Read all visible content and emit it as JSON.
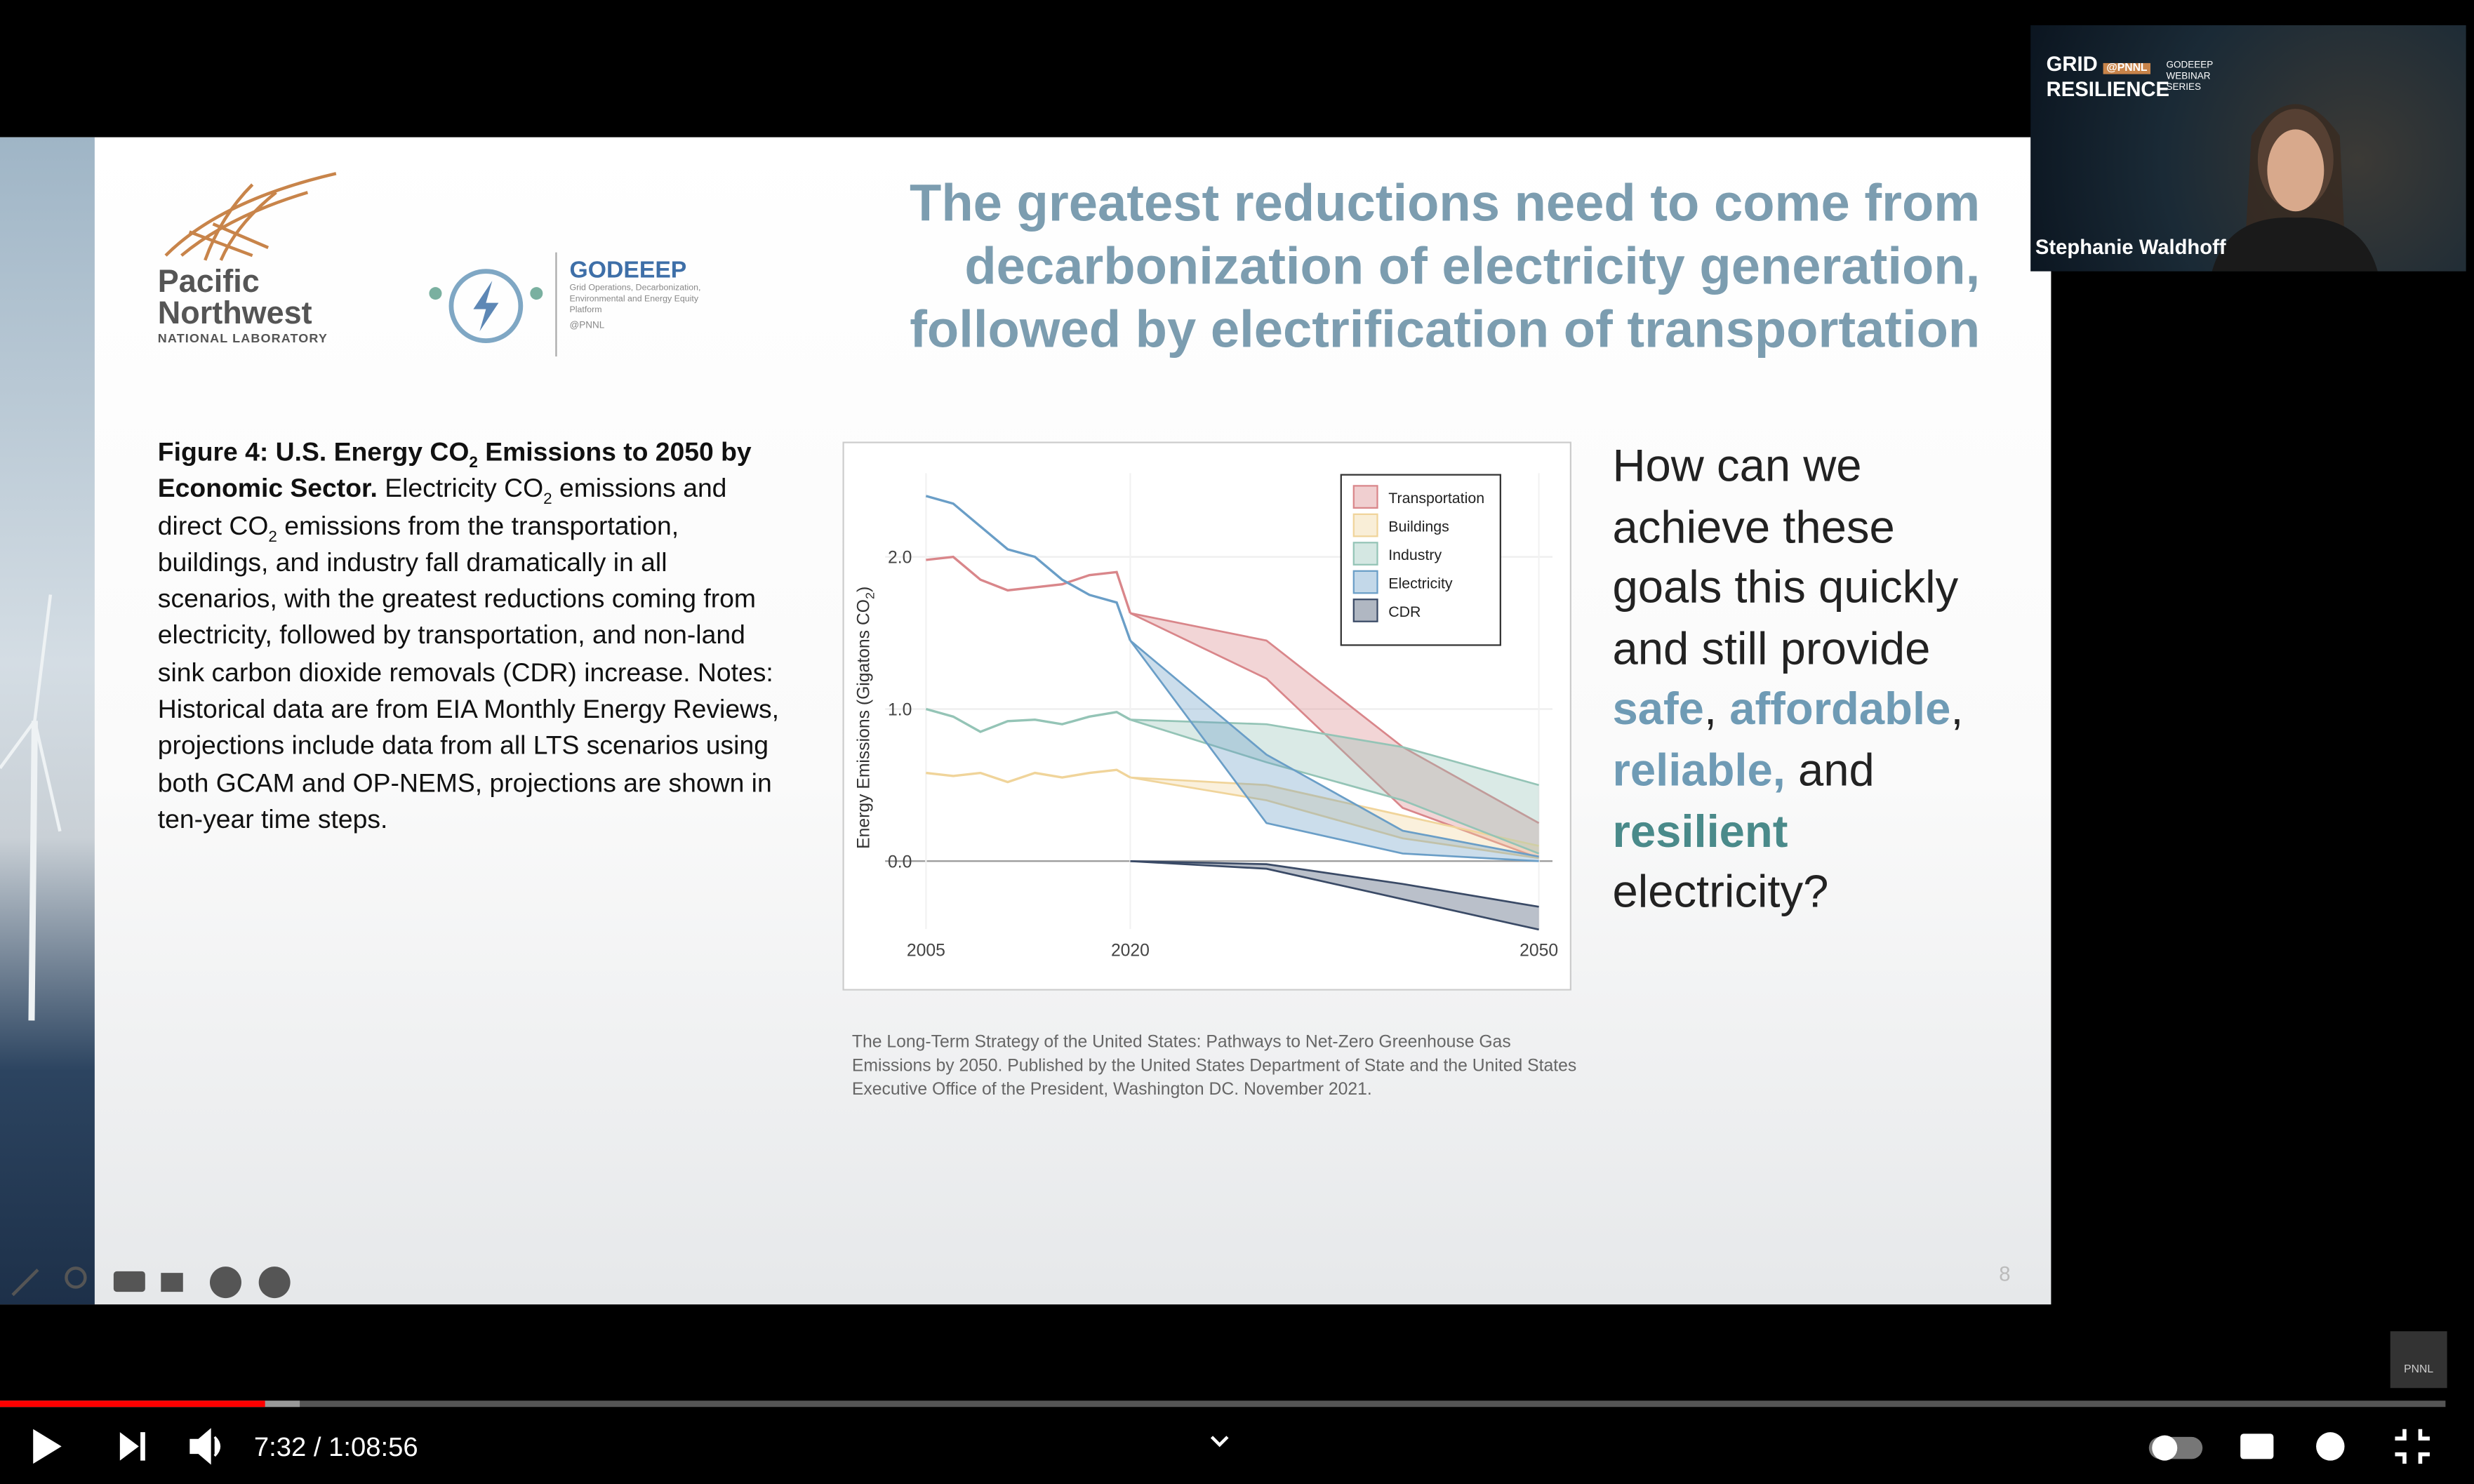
{
  "slide": {
    "pnnl_line1": "Pacific",
    "pnnl_line2": "Northwest",
    "pnnl_sub": "NATIONAL LABORATORY",
    "godeeep": "GODEEEP",
    "godeeep_tagline": "Grid Operations, Decarbonization, Environmental and Energy Equity Platform",
    "godeeep_handle": "@PNNL",
    "title": [
      "The greatest reductions need to come from",
      "decarbonization of electricity generation,",
      "followed by electrification of transportation"
    ],
    "caption": [
      "Figure 4: U.S. Energy CO",
      "2",
      " Emissions to 2050 by Economic Sector.",
      " Electricity CO",
      "2",
      " emissions and direct CO",
      "2",
      " emissions from the transportation, buildings, and industry fall dramatically in all scenarios, with the greatest reductions coming from electricity, followed by transportation, and non-land sink carbon dioxide removals (CDR) increase. Notes: Historical data are from EIA Monthly Energy Reviews, projections include data from all LTS scenarios using both GCAM and OP-NEMS, projections are shown in ten-year time steps."
    ],
    "question": [
      "How can we achieve these goals this quickly and still provide ",
      "safe",
      ",",
      "affordable",
      ",",
      "reliable,",
      " and",
      "resilient",
      "electricity?"
    ],
    "source": "The Long-Term Strategy of the United States: Pathways to Net-Zero Greenhouse Gas Emissions by 2050. Published by the United States Department of State and the United States Executive Office of the President, Washington DC. November 2021.",
    "page_number": "8",
    "figure": {
      "y_label": [
        "Energy Emissions (Gigatons CO",
        "2",
        ")"
      ],
      "xlim": [
        2002,
        2051
      ],
      "ylim": [
        -0.55,
        2.55
      ],
      "xticks": [
        2005,
        2020,
        2050
      ],
      "yticks": [
        {
          "value": 0,
          "label": "0.0"
        },
        {
          "value": 1,
          "label": "1.0"
        },
        {
          "value": 2,
          "label": "2.0"
        }
      ],
      "x_hist": [
        2005,
        2007,
        2009,
        2011,
        2013,
        2015,
        2017,
        2019,
        2020
      ],
      "x_proj": [
        2020,
        2030,
        2040,
        2050
      ],
      "series": [
        {
          "name": "Transportation",
          "color": "#d9868a",
          "hist": [
            1.98,
            2.0,
            1.85,
            1.78,
            1.8,
            1.82,
            1.88,
            1.9,
            1.63
          ],
          "low": [
            1.63,
            1.2,
            0.35,
            0.02
          ],
          "high": [
            1.63,
            1.45,
            0.75,
            0.25
          ]
        },
        {
          "name": "Buildings",
          "color": "#f0d49a",
          "hist": [
            0.58,
            0.56,
            0.58,
            0.52,
            0.58,
            0.55,
            0.58,
            0.6,
            0.55
          ],
          "low": [
            0.55,
            0.4,
            0.15,
            0.02
          ],
          "high": [
            0.55,
            0.5,
            0.3,
            0.1
          ]
        },
        {
          "name": "Industry",
          "color": "#94c4b6",
          "hist": [
            1.0,
            0.95,
            0.85,
            0.92,
            0.93,
            0.9,
            0.95,
            0.98,
            0.93
          ],
          "low": [
            0.93,
            0.65,
            0.4,
            0.05
          ],
          "high": [
            0.93,
            0.9,
            0.75,
            0.5
          ]
        },
        {
          "name": "Electricity",
          "color": "#6a9ec7",
          "hist": [
            2.4,
            2.35,
            2.2,
            2.05,
            2.0,
            1.85,
            1.75,
            1.7,
            1.45
          ],
          "low": [
            1.45,
            0.25,
            0.05,
            0.0
          ],
          "high": [
            1.45,
            0.7,
            0.2,
            0.03
          ]
        },
        {
          "name": "CDR",
          "color": "#3a4a66",
          "low": [
            0,
            -0.05,
            -0.25,
            -0.45
          ],
          "high": [
            0,
            -0.02,
            -0.15,
            -0.3
          ]
        }
      ]
    }
  },
  "webcam": {
    "name": "Stephanie Waldhoff",
    "logo_line1": "GRID",
    "logo_line2": "RESILIENCE",
    "logo_tag": "@PNNL",
    "series_label": "GODEEEP WEBINAR SERIES"
  },
  "watermark": "PNNL",
  "player": {
    "time": "7:32 / 1:08:56"
  }
}
